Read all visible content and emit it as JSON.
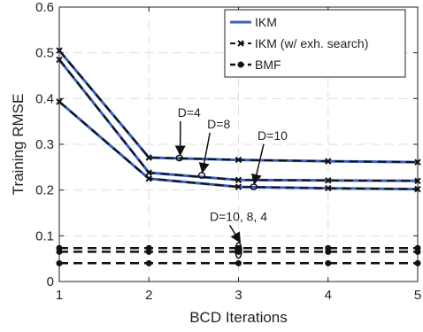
{
  "chart_data": {
    "type": "line",
    "xlabel": "BCD Iterations",
    "ylabel": "Training RMSE",
    "xlim": [
      1,
      5
    ],
    "ylim": [
      0,
      0.6
    ],
    "x_ticks": [
      "1",
      "2",
      "3",
      "4",
      "5"
    ],
    "y_ticks": [
      "0",
      "0.1",
      "0.2",
      "0.3",
      "0.4",
      "0.5",
      "0.6"
    ],
    "grid": true,
    "legend_position": "top-right",
    "legend": [
      {
        "label": "IKM",
        "style": "solid",
        "color": "#3a5fc0",
        "marker": "none"
      },
      {
        "label": "IKM (w/ exh. search)",
        "style": "dashed",
        "color": "#111111",
        "marker": "x"
      },
      {
        "label": "BMF",
        "style": "dashed",
        "color": "#111111",
        "marker": "o"
      }
    ],
    "x": [
      1,
      2,
      3,
      4,
      5
    ],
    "series": [
      {
        "group": "IKM",
        "values": [
          0.505,
          0.271,
          0.266,
          0.263,
          0.261
        ]
      },
      {
        "group": "IKM",
        "values": [
          0.485,
          0.238,
          0.222,
          0.221,
          0.22
        ]
      },
      {
        "group": "IKM",
        "values": [
          0.393,
          0.225,
          0.207,
          0.204,
          0.202
        ]
      },
      {
        "group": "IKM (w/ exh. search)",
        "values": [
          0.505,
          0.271,
          0.266,
          0.263,
          0.261
        ]
      },
      {
        "group": "IKM (w/ exh. search)",
        "values": [
          0.485,
          0.238,
          0.222,
          0.221,
          0.22
        ]
      },
      {
        "group": "IKM (w/ exh. search)",
        "values": [
          0.393,
          0.225,
          0.207,
          0.204,
          0.202
        ]
      },
      {
        "group": "BMF",
        "values": [
          0.073,
          0.073,
          0.073,
          0.073,
          0.073
        ]
      },
      {
        "group": "BMF",
        "values": [
          0.065,
          0.065,
          0.065,
          0.065,
          0.065
        ]
      },
      {
        "group": "BMF",
        "values": [
          0.04,
          0.04,
          0.04,
          0.04,
          0.04
        ]
      }
    ],
    "annotations": [
      {
        "text": "D=4",
        "text_at": [
          2.45,
          0.36
        ],
        "ellipse_at": [
          2.34,
          0.27
        ],
        "ellipse_ry": 0.006
      },
      {
        "text": "D=8",
        "text_at": [
          2.78,
          0.335
        ],
        "ellipse_at": [
          2.59,
          0.232
        ],
        "ellipse_ry": 0.006
      },
      {
        "text": "D=10",
        "text_at": [
          3.38,
          0.31
        ],
        "ellipse_at": [
          3.17,
          0.207
        ],
        "ellipse_ry": 0.006
      },
      {
        "text": "D=10, 8, 4",
        "text_at": [
          3.0,
          0.133
        ],
        "ellipse_at": [
          3.0,
          0.068
        ],
        "ellipse_ry": 0.017
      }
    ]
  }
}
